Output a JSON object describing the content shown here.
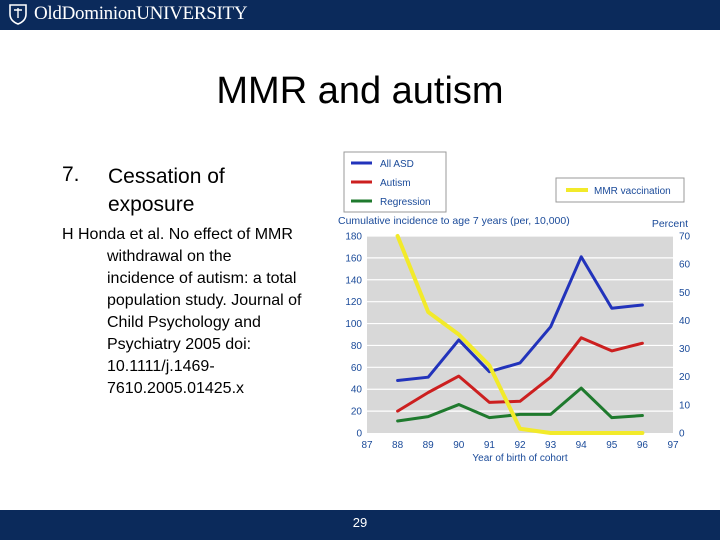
{
  "header": {
    "logo_text": "OldDominionUNIVERSITY"
  },
  "slide": {
    "title": "MMR and autism",
    "point_number": "7.",
    "point_text": "Cessation of exposure",
    "reference": "H Honda et al. No effect of MMR withdrawal on the incidence of autism: a total population study. Journal of Child Psychology and Psychiatry 2005 doi: 10.1111/j.1469-7610.2005.01425.x",
    "reference_lines": [
      "H Honda et al. No effect of MMR",
      "withdrawal on the",
      "incidence of autism: a total",
      "population study. Journal of",
      "Child Psychology and",
      "Psychiatry 2005 doi:",
      "10.1111/j.1469-",
      "7610.2005.01425.x"
    ],
    "page_number": "29"
  },
  "colors": {
    "brand_navy": "#0b2a5b",
    "all_asd": "#2233bb",
    "autism": "#cc1f1f",
    "regression": "#1f7a2e",
    "mmr": "#f2ea2a",
    "axis_text": "#1a4a99",
    "plot_bg": "#d8d8d8"
  },
  "chart_data": {
    "type": "line",
    "title": "Cumulative incidence to age 7 years (per, 10,000)",
    "right_axis_title": "Percent",
    "xlabel": "Year of birth of cohort",
    "x_ticks": [
      "87",
      "88",
      "89",
      "90",
      "91",
      "92",
      "93",
      "94",
      "95",
      "96",
      "97"
    ],
    "xlim": [
      87,
      97
    ],
    "ylim": [
      0,
      180
    ],
    "y_ticks": [
      0,
      20,
      40,
      60,
      80,
      100,
      120,
      140,
      160,
      180
    ],
    "y2lim": [
      0,
      70
    ],
    "y2_ticks": [
      0,
      10,
      20,
      30,
      40,
      50,
      60,
      70
    ],
    "grid": "horizontal",
    "series": [
      {
        "name": "All ASD",
        "axis": "left",
        "color": "#2233bb",
        "x": [
          88,
          89,
          90,
          91,
          92,
          93,
          94,
          95,
          96
        ],
        "values": [
          48,
          51,
          85,
          56,
          64,
          97,
          161,
          114,
          117
        ]
      },
      {
        "name": "Autism",
        "axis": "left",
        "color": "#cc1f1f",
        "x": [
          88,
          89,
          90,
          91,
          92,
          93,
          94,
          95,
          96
        ],
        "values": [
          20,
          37,
          52,
          28,
          29,
          51,
          87,
          75,
          82
        ]
      },
      {
        "name": "Regression",
        "axis": "left",
        "color": "#1f7a2e",
        "x": [
          88,
          89,
          90,
          91,
          92,
          93,
          94,
          95,
          96
        ],
        "values": [
          11,
          15,
          26,
          14,
          17,
          17,
          41,
          14,
          16
        ]
      },
      {
        "name": "MMR vaccination",
        "axis": "right",
        "color": "#f2ea2a",
        "x": [
          88,
          89,
          90,
          91,
          92,
          93,
          94,
          95,
          96
        ],
        "values": [
          70,
          43,
          35,
          24,
          1.5,
          0,
          0,
          0,
          0
        ]
      }
    ],
    "legend_left": [
      "All ASD",
      "Autism",
      "Regression"
    ],
    "legend_right": [
      "MMR vaccination"
    ]
  }
}
